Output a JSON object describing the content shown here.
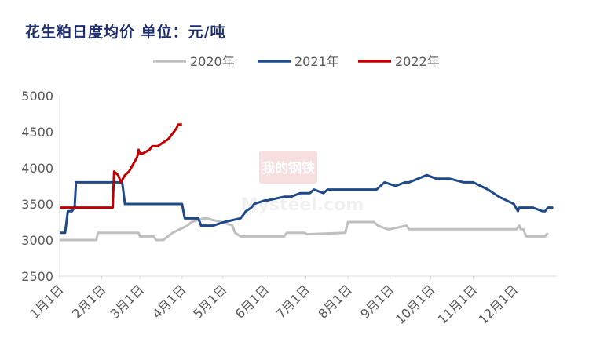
{
  "title": "花生粕日度均价  单位：元/吨",
  "watermark": {
    "brand": "我的钢铁",
    "site": "Mysteel.com"
  },
  "chart_data": {
    "type": "line",
    "ylim": [
      2500,
      5000
    ],
    "yticks": [
      2500,
      3000,
      3500,
      4000,
      4500,
      5000
    ],
    "xlim_days": [
      0,
      365
    ],
    "xticks": [
      "1月1日",
      "2月1日",
      "3月1日",
      "4月1日",
      "5月1日",
      "6月1日",
      "7月1日",
      "8月1日",
      "9月1日",
      "10月1日",
      "11月1日",
      "12月1日"
    ],
    "legend_position": "top",
    "grid": false,
    "series": [
      {
        "name": "2020年",
        "color": "#bfbfbf",
        "x": [
          "1月1日",
          "1月28日",
          "1月29日",
          "2月28日",
          "3月1日",
          "3月11日",
          "3月13日",
          "3月18日",
          "3月25日",
          "4月5日",
          "4月8日",
          "4月17日",
          "4月20日",
          "4月23日",
          "4月30日",
          "5月8日",
          "5月10日",
          "5月14日",
          "5月16日",
          "6月15日",
          "6月17日",
          "6月30日",
          "7月2日",
          "7月30日",
          "8月1日",
          "8月20日",
          "8月23日",
          "8月30日",
          "9月1日",
          "9月13日",
          "9月15日",
          "12月3日",
          "12月5日",
          "12月6日",
          "12月8日",
          "12月10日",
          "12月24日",
          "12月26日"
        ],
        "y": [
          3000,
          3000,
          3100,
          3100,
          3050,
          3050,
          3000,
          3000,
          3100,
          3200,
          3250,
          3300,
          3300,
          3280,
          3250,
          3200,
          3100,
          3050,
          3050,
          3050,
          3100,
          3100,
          3080,
          3100,
          3250,
          3250,
          3200,
          3150,
          3150,
          3200,
          3150,
          3150,
          3200,
          3150,
          3150,
          3050,
          3050,
          3100
        ]
      },
      {
        "name": "2021年",
        "color": "#1f4a8a",
        "x": [
          "1月1日",
          "1月5日",
          "1月7日",
          "1月10日",
          "1月12日",
          "1月13日",
          "1月16日",
          "2月16日",
          "2月18日",
          "4月1日",
          "4月3日",
          "4月13日",
          "4月15日",
          "4月24日",
          "5月2日",
          "5月14日",
          "5月16日",
          "5月18日",
          "5月22日",
          "5月24日",
          "6月1日",
          "6月3日",
          "6月15日",
          "6月20日",
          "6月27日",
          "7月4日",
          "7月7日",
          "7月14日",
          "7月17日",
          "8月22日",
          "8月28日",
          "9月5日",
          "9月12日",
          "9月15日",
          "9月28日",
          "10月5日",
          "10月15日",
          "10月25日",
          "11月1日",
          "11月12日",
          "11月20日",
          "12月1日",
          "12月4日",
          "12月5日",
          "12月8日",
          "12月15日",
          "12月22日",
          "12月24日",
          "12月26日",
          "12月30日"
        ],
        "y": [
          3100,
          3100,
          3400,
          3400,
          3450,
          3800,
          3800,
          3800,
          3500,
          3500,
          3300,
          3300,
          3200,
          3200,
          3250,
          3300,
          3350,
          3400,
          3450,
          3500,
          3550,
          3550,
          3600,
          3600,
          3650,
          3650,
          3700,
          3650,
          3700,
          3700,
          3800,
          3750,
          3800,
          3800,
          3900,
          3850,
          3850,
          3800,
          3800,
          3700,
          3600,
          3500,
          3400,
          3450,
          3450,
          3450,
          3400,
          3400,
          3450,
          3450
        ]
      },
      {
        "name": "2022年",
        "color": "#c00000",
        "x": [
          "1月1日",
          "2月9日",
          "2月10日",
          "2月13日",
          "2月15日",
          "2月18日",
          "2月21日",
          "2月24日",
          "2月27日",
          "2月28日",
          "3月1日",
          "3月3日",
          "3月8日",
          "3月10日",
          "3月14日",
          "3月18日",
          "3月22日",
          "3月24日",
          "3月26日",
          "3月28日",
          "3月29日",
          "3月31日",
          "4月1日"
        ],
        "y": [
          3450,
          3450,
          3950,
          3900,
          3800,
          3900,
          3950,
          4050,
          4150,
          4250,
          4200,
          4200,
          4250,
          4300,
          4300,
          4350,
          4400,
          4450,
          4500,
          4550,
          4600,
          4600,
          4600
        ]
      }
    ]
  }
}
